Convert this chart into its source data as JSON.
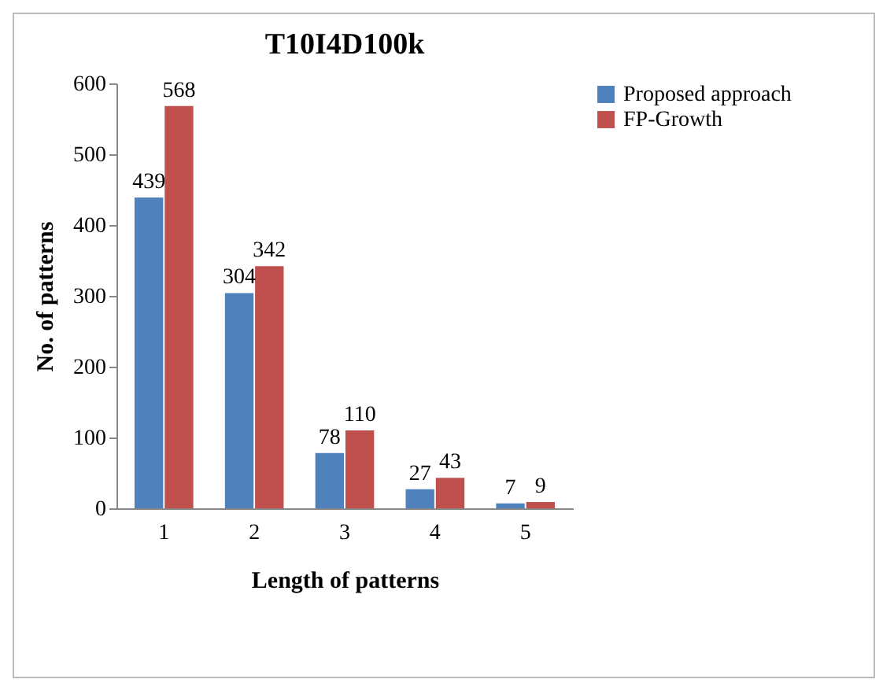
{
  "chart_data": {
    "type": "bar",
    "title": "T10I4D100k",
    "xlabel": "Length of patterns",
    "ylabel": "No. of patterns",
    "categories": [
      "1",
      "2",
      "3",
      "4",
      "5"
    ],
    "series": [
      {
        "name": "Proposed approach",
        "color": "#4f81bd",
        "values": [
          439,
          304,
          78,
          27,
          7
        ]
      },
      {
        "name": "FP-Growth",
        "color": "#c0504d",
        "values": [
          568,
          342,
          110,
          43,
          9
        ]
      }
    ],
    "ylim": [
      0,
      600
    ],
    "yticks": [
      0,
      100,
      200,
      300,
      400,
      500,
      600
    ],
    "data_labels": true,
    "legend": "right",
    "grid": false
  }
}
